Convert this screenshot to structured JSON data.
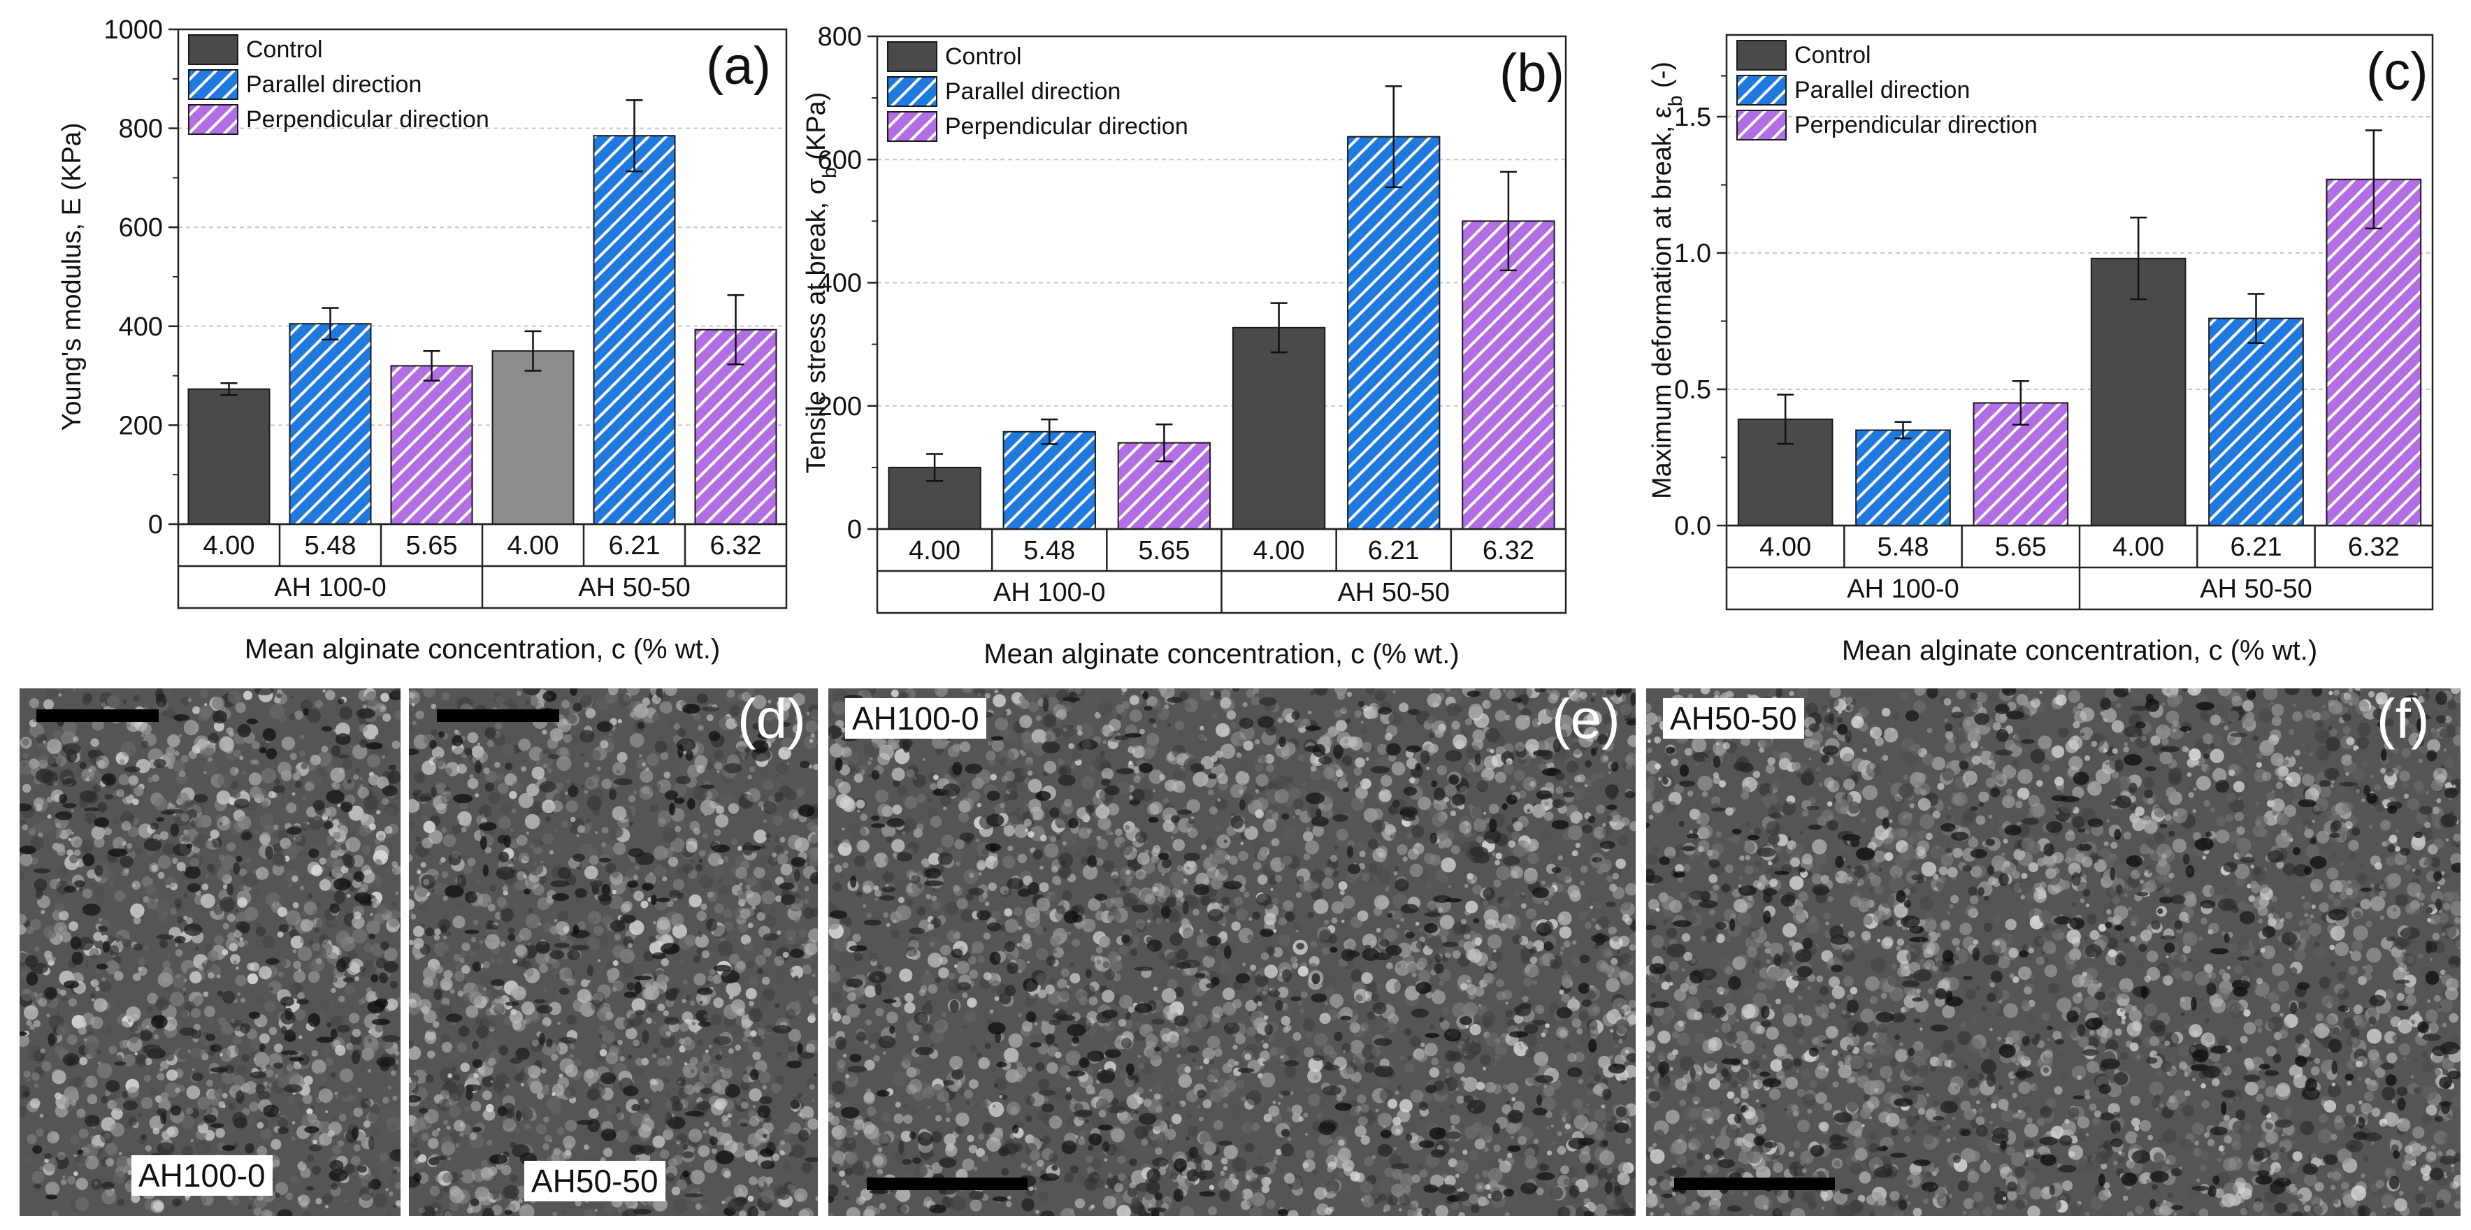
{
  "legend": {
    "control": "Control",
    "parallel": "Parallel direction",
    "perpendicular": "Perpendicular direction"
  },
  "colors": {
    "control": "#4a4a4a",
    "control_light": "#8c8c8c",
    "parallel": "#1f7ae0",
    "perpendicular": "#b36ee6",
    "hatch": "#ffffff",
    "grid": "#c8c8c8"
  },
  "chart_data": [
    {
      "type": "bar",
      "panel_letter": "(a)",
      "ylabel": "Young's modulus, E (KPa)",
      "xlabel": "Mean alginate concentration, c (% wt.)",
      "ylim": [
        0,
        1000
      ],
      "yticks": [
        "0",
        "200",
        "400",
        "600",
        "800",
        "1000"
      ],
      "groups": [
        "AH 100-0",
        "AH 50-50"
      ],
      "series": [
        {
          "name": "Control",
          "key": "control",
          "values": [
            273,
            350
          ],
          "errors": [
            12,
            40
          ],
          "concentration": [
            "4.00",
            "4.00"
          ]
        },
        {
          "name": "Parallel direction",
          "key": "parallel",
          "values": [
            405,
            785
          ],
          "errors": [
            32,
            72
          ],
          "concentration": [
            "5.48",
            "6.21"
          ]
        },
        {
          "name": "Perpendicular direction",
          "key": "perpendicular",
          "values": [
            320,
            393
          ],
          "errors": [
            30,
            70
          ],
          "concentration": [
            "5.65",
            "6.32"
          ]
        }
      ]
    },
    {
      "type": "bar",
      "panel_letter": "(b)",
      "ylabel": "Tensile stress at break, σ",
      "ylabel_sub": "b",
      "ylabel_unit": " (KPa)",
      "xlabel": "Mean alginate concentration, c (% wt.)",
      "ylim": [
        0,
        800
      ],
      "yticks": [
        "0",
        "200",
        "400",
        "600",
        "800"
      ],
      "groups": [
        "AH 100-0",
        "AH 50-50"
      ],
      "series": [
        {
          "name": "Control",
          "key": "control",
          "values": [
            100,
            327
          ],
          "errors": [
            22,
            40
          ],
          "concentration": [
            "4.00",
            "4.00"
          ]
        },
        {
          "name": "Parallel direction",
          "key": "parallel",
          "values": [
            158,
            637
          ],
          "errors": [
            20,
            82
          ],
          "concentration": [
            "5.48",
            "6.21"
          ]
        },
        {
          "name": "Perpendicular direction",
          "key": "perpendicular",
          "values": [
            140,
            500
          ],
          "errors": [
            30,
            80
          ],
          "concentration": [
            "5.65",
            "6.32"
          ]
        }
      ]
    },
    {
      "type": "bar",
      "panel_letter": "(c)",
      "ylabel": "Maximum deformation at break, ε",
      "ylabel_sub": "b",
      "ylabel_unit": " (-)",
      "xlabel": "Mean alginate concentration, c (% wt.)",
      "ylim": [
        0,
        1.8
      ],
      "yticks": [
        "0.0",
        "0.5",
        "1.0",
        "1.5"
      ],
      "ytick_values": [
        0,
        0.5,
        1.0,
        1.5
      ],
      "groups": [
        "AH 100-0",
        "AH 50-50"
      ],
      "series": [
        {
          "name": "Control",
          "key": "control",
          "values": [
            0.39,
            0.98
          ],
          "errors": [
            0.09,
            0.15
          ],
          "concentration": [
            "4.00",
            "4.00"
          ]
        },
        {
          "name": "Parallel direction",
          "key": "parallel",
          "values": [
            0.35,
            0.76
          ],
          "errors": [
            0.03,
            0.09
          ],
          "concentration": [
            "5.48",
            "6.21"
          ]
        },
        {
          "name": "Perpendicular direction",
          "key": "perpendicular",
          "values": [
            0.45,
            1.27
          ],
          "errors": [
            0.08,
            0.18
          ],
          "concentration": [
            "5.65",
            "6.32"
          ]
        }
      ]
    }
  ],
  "sem": [
    {
      "letter": "",
      "label": "AH100-0"
    },
    {
      "letter": "(d)",
      "label": "AH50-50"
    },
    {
      "letter": "(e)",
      "label": "AH100-0"
    },
    {
      "letter": "(f)",
      "label": "AH50-50"
    }
  ]
}
